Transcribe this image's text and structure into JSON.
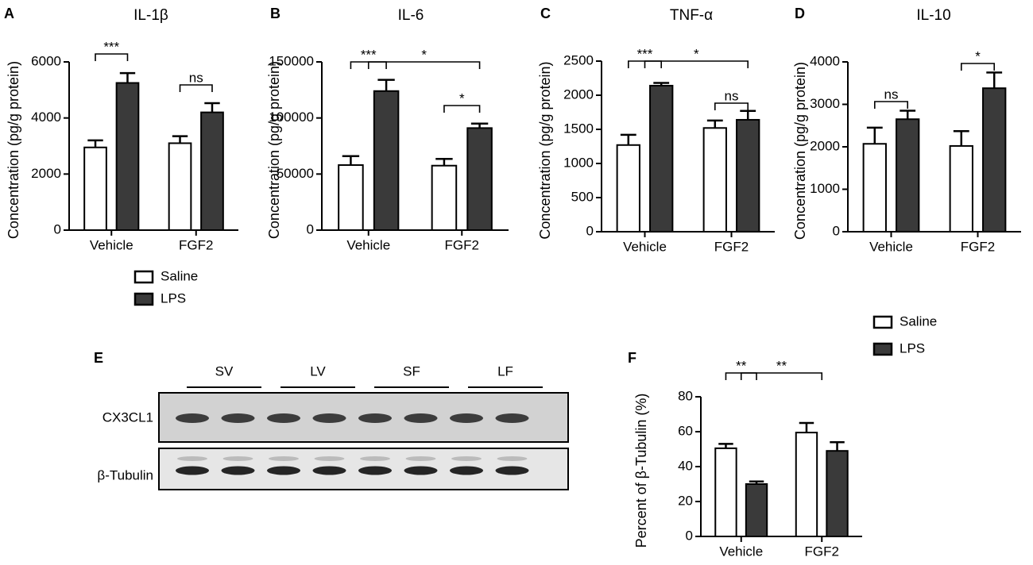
{
  "chart_data": [
    {
      "panel": "A",
      "type": "bar",
      "title": "IL-1β",
      "y_label": "Concentration (pg/g protein)",
      "categories": [
        "Vehicle",
        "FGF2"
      ],
      "series": [
        {
          "name": "Saline",
          "color": "#ffffff",
          "values": [
            2950,
            3100
          ],
          "errors": [
            250,
            250
          ]
        },
        {
          "name": "LPS",
          "color": "#3a3a3a",
          "values": [
            5250,
            4200
          ],
          "errors": [
            350,
            330
          ]
        }
      ],
      "ylim": [
        0,
        6000
      ],
      "yticks": [
        0,
        2000,
        4000,
        6000
      ],
      "annotations": [
        "***",
        "ns"
      ],
      "legend": true
    },
    {
      "panel": "B",
      "type": "bar",
      "title": "IL-6",
      "y_label": "Concentration (pg/g protein)",
      "categories": [
        "Vehicle",
        "FGF2"
      ],
      "series": [
        {
          "color": "#ffffff",
          "values": [
            58000,
            57500
          ],
          "errors": [
            8000,
            6000
          ]
        },
        {
          "color": "#3a3a3a",
          "values": [
            124000,
            91000
          ],
          "errors": [
            10000,
            4000
          ]
        }
      ],
      "ylim": [
        0,
        150000
      ],
      "yticks": [
        0,
        50000,
        100000,
        150000
      ],
      "annotations": [
        "***",
        "*",
        "*"
      ],
      "legend": false
    },
    {
      "panel": "C",
      "type": "bar",
      "title": "TNF-α",
      "y_label": "Concentration (pg/g protein)",
      "categories": [
        "Vehicle",
        "FGF2"
      ],
      "series": [
        {
          "color": "#ffffff",
          "values": [
            1270,
            1520
          ],
          "errors": [
            150,
            110
          ]
        },
        {
          "color": "#3a3a3a",
          "values": [
            2140,
            1640
          ],
          "errors": [
            40,
            130
          ]
        }
      ],
      "ylim": [
        0,
        2500
      ],
      "yticks": [
        0,
        500,
        1000,
        1500,
        2000,
        2500
      ],
      "annotations": [
        "***",
        "*",
        "ns"
      ],
      "legend": false
    },
    {
      "panel": "D",
      "type": "bar",
      "title": "IL-10",
      "y_label": "Concentration (pg/g protein)",
      "categories": [
        "Vehicle",
        "FGF2"
      ],
      "series": [
        {
          "color": "#ffffff",
          "values": [
            2070,
            2020
          ],
          "errors": [
            380,
            350
          ]
        },
        {
          "color": "#3a3a3a",
          "values": [
            2650,
            3380
          ],
          "errors": [
            200,
            370
          ]
        }
      ],
      "ylim": [
        0,
        4000
      ],
      "yticks": [
        0,
        1000,
        2000,
        3000,
        4000
      ],
      "annotations": [
        "ns",
        "*"
      ],
      "legend": false
    },
    {
      "panel": "F",
      "type": "bar",
      "y_label": "Percent of β-Tubulin (%)",
      "categories": [
        "Vehicle",
        "FGF2"
      ],
      "series": [
        {
          "name": "Saline",
          "color": "#ffffff",
          "values": [
            50.5,
            59.5
          ],
          "errors": [
            2.5,
            5.5
          ]
        },
        {
          "name": "LPS",
          "color": "#3a3a3a",
          "values": [
            30,
            49
          ],
          "errors": [
            1.5,
            5
          ]
        }
      ],
      "ylim": [
        0,
        80
      ],
      "yticks": [
        0,
        20,
        40,
        60,
        80
      ],
      "annotations": [
        "**",
        "**"
      ],
      "legend": true
    }
  ],
  "blot": {
    "panel": "E",
    "lanes": [
      "SV",
      "LV",
      "SF",
      "LF"
    ],
    "rows": [
      "CX3CL1",
      "β-Tubulin"
    ]
  }
}
